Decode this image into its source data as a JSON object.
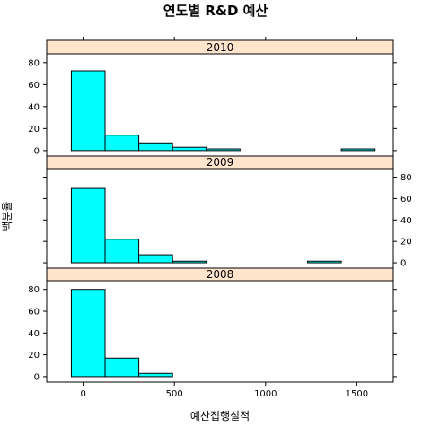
{
  "chart_data": {
    "type": "bar",
    "title": "연도별 R&D 예산",
    "xlabel": "예산집행실적",
    "ylabel": "백분율",
    "xlim": [
      -200,
      1700
    ],
    "ylim": [
      -5,
      88
    ],
    "x_ticks": [
      0,
      500,
      1000,
      1500
    ],
    "y_ticks": [
      0,
      20,
      40,
      60,
      80
    ],
    "bin_edges": [
      -65,
      120,
      305,
      490,
      675,
      860,
      1045,
      1230,
      1415,
      1600
    ],
    "color": "#00FFFF",
    "strip_color": "#FFE5CC",
    "panels": [
      {
        "label": "2010",
        "values": [
          72.5,
          14,
          7,
          3,
          1.5,
          0,
          0,
          0,
          1.5
        ]
      },
      {
        "label": "2009",
        "values": [
          69.5,
          22,
          7.5,
          1.5,
          0,
          0,
          0,
          1.5,
          0
        ]
      },
      {
        "label": "2008",
        "values": [
          80,
          17,
          3,
          0,
          0,
          0,
          0,
          0,
          0
        ]
      }
    ]
  }
}
